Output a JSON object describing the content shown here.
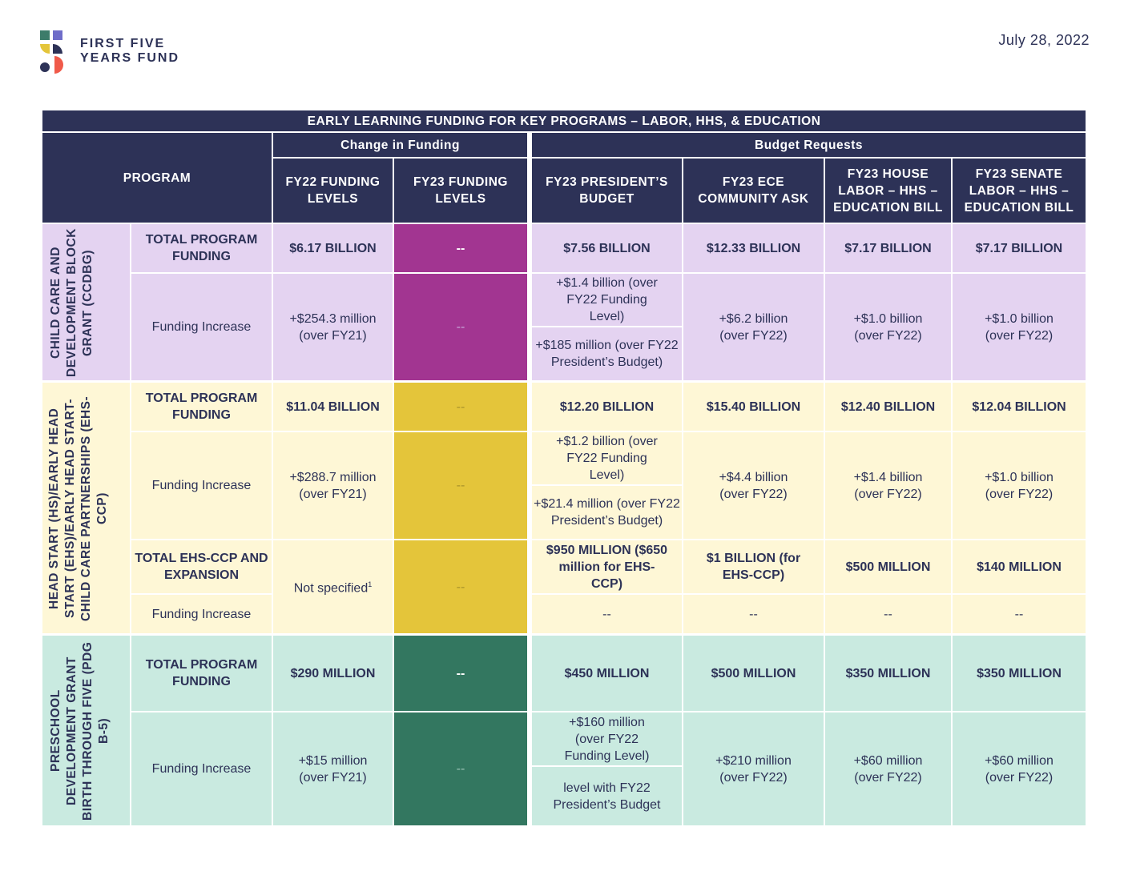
{
  "header": {
    "logo_text_line1": "FIRST FIVE",
    "logo_text_line2": "YEARS FUND",
    "date": "July 28, 2022",
    "colors": {
      "navy": "#2d3257",
      "teal": "#3d7c6a",
      "gold": "#e4c53a",
      "purple": "#6f6dc9",
      "magenta": "#a23591",
      "coral": "#f05a4a"
    }
  },
  "table": {
    "title": "EARLY LEARNING FUNDING FOR KEY PROGRAMS – LABOR, HHS, & EDUCATION",
    "group_change": "Change in Funding",
    "group_budget": "Budget Requests",
    "col_program": "PROGRAM",
    "col_fy22": "FY22 FUNDING LEVELS",
    "col_fy23": "FY23 FUNDING LEVELS",
    "col_pres": "FY23 PRESIDENT’S BUDGET",
    "col_ece": "FY23 ECE COMMUNITY ASK",
    "col_house": "FY23 HOUSE LABOR – HHS – EDUCATION BILL",
    "col_senate": "FY23 SENATE LABOR – HHS – EDUCATION BILL"
  },
  "ccdbg": {
    "program": "CHILD CARE AND DEVELOPMENT BLOCK GRANT (CCDBG)",
    "total_label": "TOTAL PROGRAM FUNDING",
    "total_fy22": "$6.17 BILLION",
    "total_fy23": "--",
    "total_pres": "$7.56 BILLION",
    "total_ece": "$12.33 BILLION",
    "total_house": "$7.17 BILLION",
    "total_senate": "$7.17 BILLION",
    "inc_label": "Funding Increase",
    "inc_fy22": "+$254.3 million (over FY21)",
    "inc_fy23": "--",
    "inc_pres_a": "+$1.4 billion (over FY22 Funding Level)",
    "inc_pres_b": "+$185 million (over FY22 President’s Budget)",
    "inc_ece": "+$6.2 billion (over FY22)",
    "inc_house": "+$1.0 billion (over FY22)",
    "inc_senate": "+$1.0 billion (over FY22)"
  },
  "headstart": {
    "program": "HEAD START (HS)/EARLY HEAD START (EHS)/EARLY HEAD START-CHILD CARE PARTNERSHIPS (EHS-CCP)",
    "total_label": "TOTAL PROGRAM FUNDING",
    "total_fy22": "$11.04 BILLION",
    "total_fy23": "--",
    "total_pres": "$12.20 BILLION",
    "total_ece": "$15.40 BILLION",
    "total_house": "$12.40 BILLION",
    "total_senate": "$12.04 BILLION",
    "inc_label": "Funding Increase",
    "inc_fy22": "+$288.7 million (over FY21)",
    "inc_fy23": "--",
    "inc_pres_a": "+$1.2 billion (over FY22 Funding Level)",
    "inc_pres_b": "+$21.4 million (over FY22 President’s Budget)",
    "inc_ece": "+$4.4 billion (over FY22)",
    "inc_house": "+$1.4 billion (over FY22)",
    "inc_senate": "+$1.0 billion (over FY22)",
    "ehs_label": "TOTAL EHS-CCP AND EXPANSION",
    "ehs_fy22": "Not specified",
    "ehs_fy22_note": "1",
    "ehs_fy23": "--",
    "ehs_pres": "$950 MILLION ($650 million for EHS-CCP)",
    "ehs_ece": "$1 BILLION (for EHS-CCP)",
    "ehs_house": "$500 MILLION",
    "ehs_senate": "$140 MILLION",
    "ehs_inc_label": "Funding Increase",
    "ehs_inc_pres": "--",
    "ehs_inc_ece": "--",
    "ehs_inc_house": "--",
    "ehs_inc_senate": "--"
  },
  "pdg": {
    "program": "PRESCHOOL DEVELOPMENT GRANT BIRTH THROUGH FIVE (PDG B-5)",
    "total_label": "TOTAL PROGRAM FUNDING",
    "total_fy22": "$290 MILLION",
    "total_fy23": "--",
    "total_pres": "$450 MILLION",
    "total_ece": "$500 MILLION",
    "total_house": "$350 MILLION",
    "total_senate": "$350 MILLION",
    "inc_label": "Funding Increase",
    "inc_fy22": "+$15 million (over FY21)",
    "inc_fy23": "--",
    "inc_pres_a": "+$160 million (over FY22 Funding Level)",
    "inc_pres_b": "level with FY22 President’s Budget",
    "inc_ece": "+$210 million (over FY22)",
    "inc_house": "+$60 million (over FY22)",
    "inc_senate": "+$60 million (over FY22)"
  }
}
